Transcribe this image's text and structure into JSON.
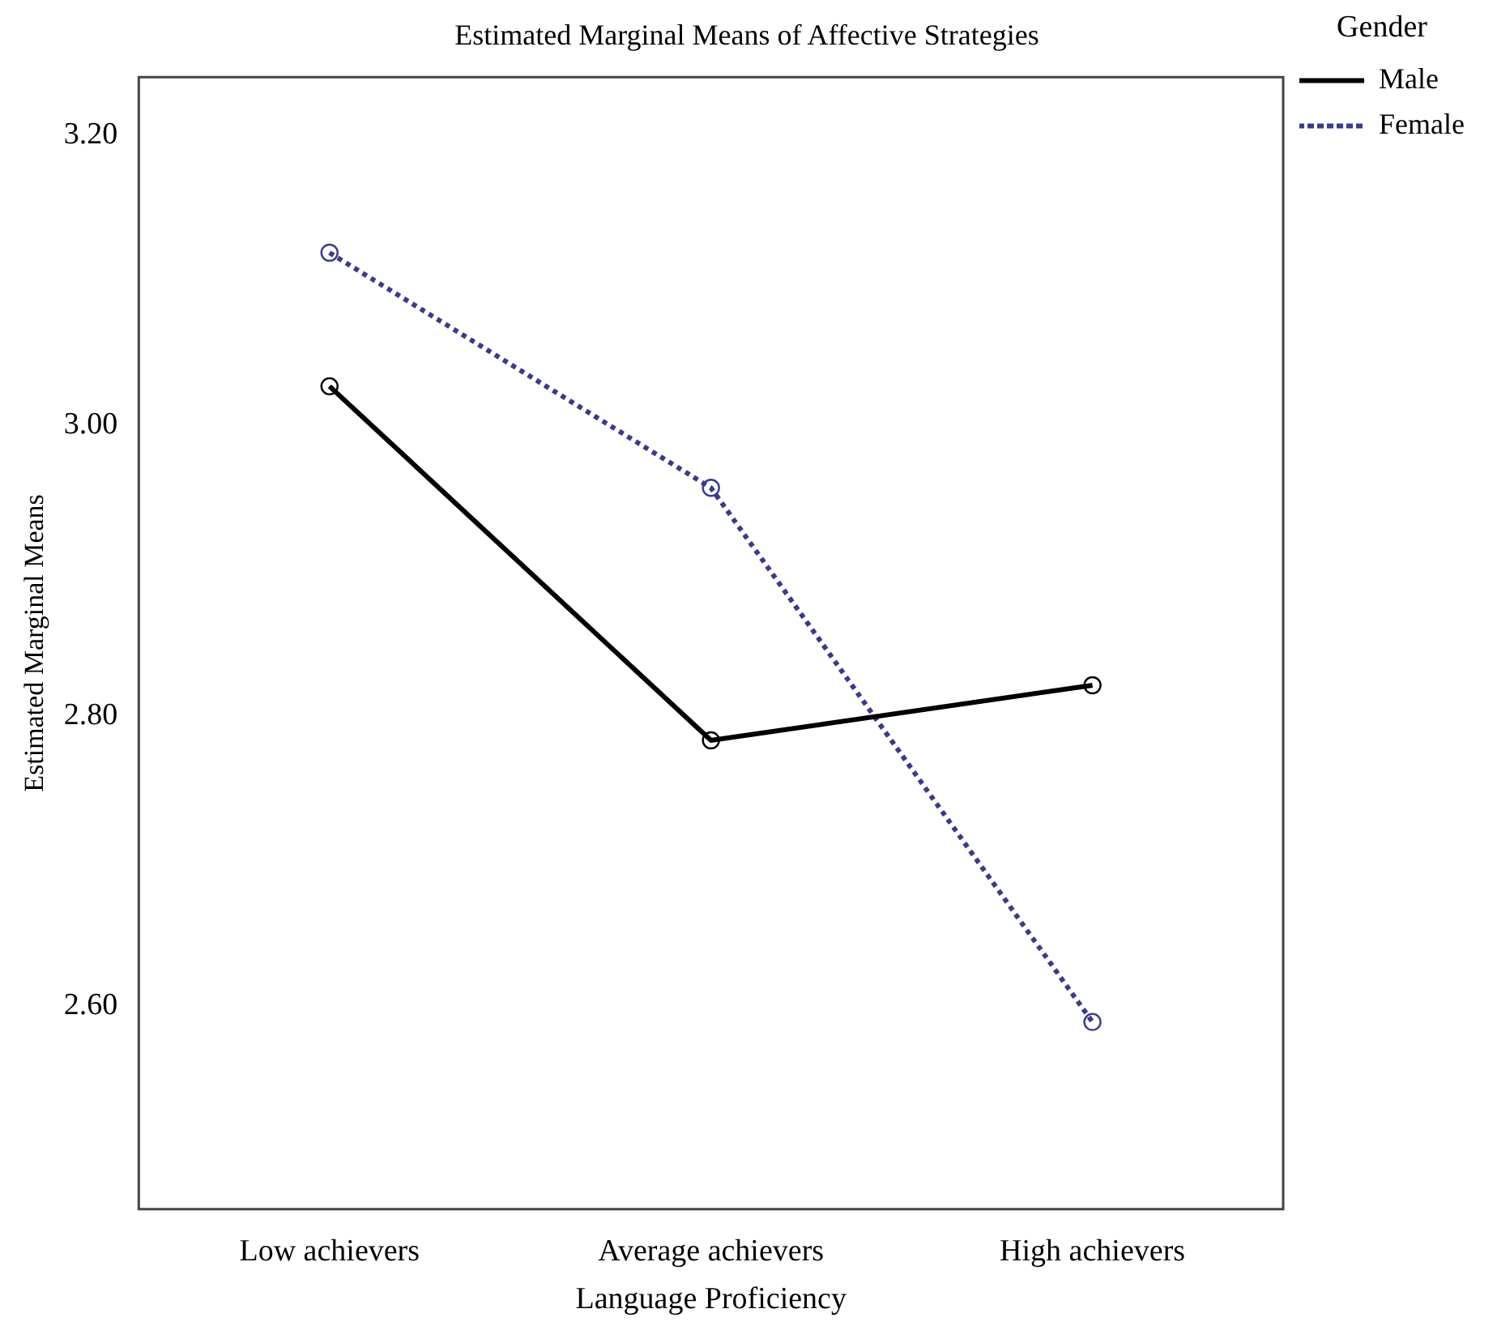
{
  "chart_data": {
    "type": "line",
    "title": "Estimated Marginal Means of Affective Strategies",
    "xlabel": "Language Proficiency",
    "ylabel": "Estimated Marginal Means",
    "legend_title": "Gender",
    "categories": [
      "Low achievers",
      "Average achievers",
      "High achievers"
    ],
    "series": [
      {
        "name": "Male",
        "color": "#000000",
        "values": [
          3.027,
          2.783,
          2.821
        ],
        "line_style": "solid"
      },
      {
        "name": "Female",
        "color": "#3a3a8c",
        "values": [
          3.119,
          2.957,
          2.589
        ],
        "line_style": "dotted"
      }
    ],
    "ylim": [
      2.46,
      3.24
    ],
    "yticks": [
      {
        "value": 2.6,
        "label": "2.60"
      },
      {
        "value": 2.8,
        "label": "2.80"
      },
      {
        "value": 3.0,
        "label": "3.00"
      },
      {
        "value": 3.2,
        "label": "3.20"
      }
    ],
    "grid": false,
    "legend": "top right",
    "marker": "circle"
  }
}
